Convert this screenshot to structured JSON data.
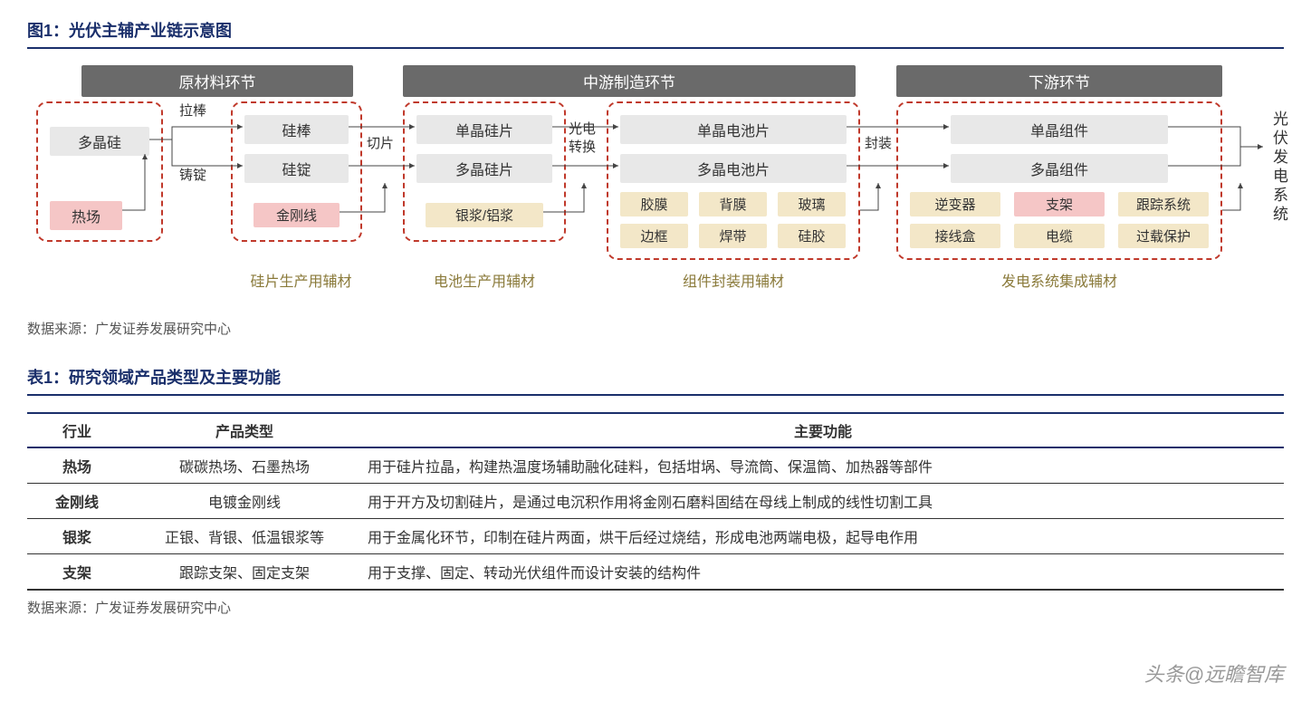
{
  "colors": {
    "title": "#1a2f6b",
    "header_bg": "#6a6a6a",
    "dashed_border": "#c0392b",
    "node_bg": "#e8e8e8",
    "pink_bg": "#f5c6c6",
    "aux_bg": "#f3e7c8",
    "aux_text": "#8a7a3a",
    "line": "#444"
  },
  "fig": {
    "label": "图1：",
    "title": "光伏主辅产业链示意图",
    "source_label": "数据来源：",
    "source": "广发证券发展研究中心",
    "stages": {
      "s1": "原材料环节",
      "s2": "中游制造环节",
      "s3": "下游环节"
    },
    "nodes": {
      "polysi": "多晶硅",
      "rechang": "热场",
      "guibang": "硅棒",
      "guiding": "硅锭",
      "jingangxian": "金刚线",
      "danjing_wafer": "单晶硅片",
      "duojing_wafer": "多晶硅片",
      "yinjiang": "银浆/铝浆",
      "danjing_cell": "单晶电池片",
      "duojing_cell": "多晶电池片",
      "jiaomo": "胶膜",
      "beimo": "背膜",
      "boli": "玻璃",
      "biankuang": "边框",
      "handai": "焊带",
      "guijiao": "硅胶",
      "danjing_mod": "单晶组件",
      "duojing_mod": "多晶组件",
      "nibianqi": "逆变器",
      "zhijia": "支架",
      "genzong": "跟踪系统",
      "jiexianhe": "接线盒",
      "dianlan": "电缆",
      "guozai": "过载保护"
    },
    "conn_labels": {
      "labang": "拉棒",
      "zhuding": "铸锭",
      "qiepian": "切片",
      "guangdian": "光电",
      "zhuanhuan": "转换",
      "fengzhuang": "封装"
    },
    "aux_labels": {
      "g1": "硅片生产用辅材",
      "g2": "电池生产用辅材",
      "g3": "组件封装用辅材",
      "g4": "发电系统集成辅材"
    },
    "output": "光伏发电系统"
  },
  "table": {
    "label": "表1：",
    "title": "研究领域产品类型及主要功能",
    "source_label": "数据来源：",
    "source": "广发证券发展研究中心",
    "headers": {
      "h1": "行业",
      "h2": "产品类型",
      "h3": "主要功能"
    },
    "rows": [
      {
        "c1": "热场",
        "c2": "碳碳热场、石墨热场",
        "c3": "用于硅片拉晶，构建热温度场辅助融化硅料，包括坩埚、导流筒、保温筒、加热器等部件"
      },
      {
        "c1": "金刚线",
        "c2": "电镀金刚线",
        "c3": "用于开方及切割硅片，是通过电沉积作用将金刚石磨料固结在母线上制成的线性切割工具"
      },
      {
        "c1": "银浆",
        "c2": "正银、背银、低温银浆等",
        "c3": "用于金属化环节，印制在硅片两面，烘干后经过烧结，形成电池两端电极，起导电作用"
      },
      {
        "c1": "支架",
        "c2": "跟踪支架、固定支架",
        "c3": "用于支撑、固定、转动光伏组件而设计安装的结构件"
      }
    ]
  },
  "watermark": "头条@远瞻智库"
}
